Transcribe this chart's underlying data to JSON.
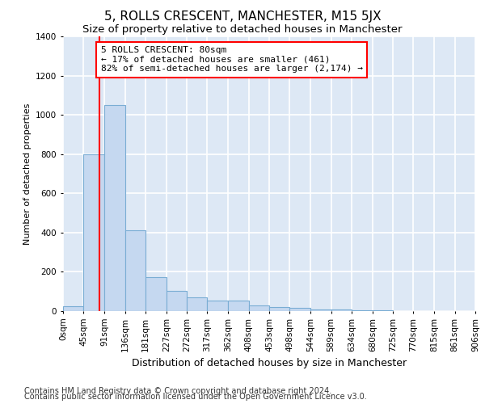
{
  "title": "5, ROLLS CRESCENT, MANCHESTER, M15 5JX",
  "subtitle": "Size of property relative to detached houses in Manchester",
  "xlabel": "Distribution of detached houses by size in Manchester",
  "ylabel": "Number of detached properties",
  "footnote1": "Contains HM Land Registry data © Crown copyright and database right 2024.",
  "footnote2": "Contains public sector information licensed under the Open Government Licence v3.0.",
  "annotation_line1": "5 ROLLS CRESCENT: 80sqm",
  "annotation_line2": "← 17% of detached houses are smaller (461)",
  "annotation_line3": "82% of semi-detached houses are larger (2,174) →",
  "bar_edges": [
    0,
    45,
    91,
    136,
    181,
    227,
    272,
    317,
    362,
    408,
    453,
    498,
    544,
    589,
    634,
    680,
    725,
    770,
    815,
    861,
    906
  ],
  "bar_heights": [
    25,
    800,
    1050,
    410,
    175,
    105,
    70,
    55,
    55,
    30,
    20,
    15,
    10,
    8,
    5,
    3,
    2,
    1,
    1,
    1
  ],
  "bar_color": "#c5d8f0",
  "bar_edgecolor": "#7aadd4",
  "property_line_x": 80,
  "property_line_color": "red",
  "ylim": [
    0,
    1400
  ],
  "yticks": [
    0,
    200,
    400,
    600,
    800,
    1000,
    1200,
    1400
  ],
  "plot_bg_color": "#dde8f5",
  "grid_color": "white",
  "title_fontsize": 11,
  "subtitle_fontsize": 9.5,
  "xlabel_fontsize": 9,
  "ylabel_fontsize": 8,
  "annotation_fontsize": 8,
  "tick_fontsize": 7.5,
  "footnote_fontsize": 7
}
